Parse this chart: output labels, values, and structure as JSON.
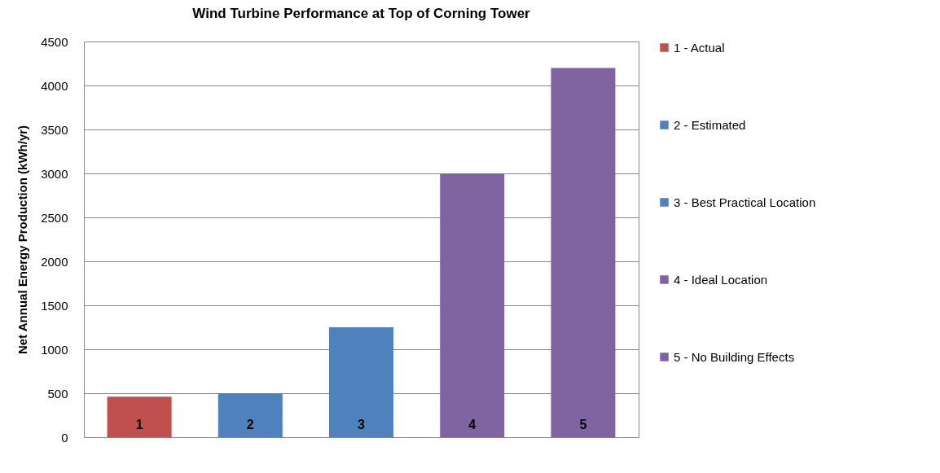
{
  "chart_data": {
    "type": "bar",
    "title": "Wind Turbine Performance at Top of Corning Tower",
    "ylabel": "Net Annual Energy Production  (kWh/yr)",
    "categories": [
      "1",
      "2",
      "3",
      "4",
      "5"
    ],
    "series": [
      {
        "name": "1 - Actual",
        "color": "#c0504d",
        "values": [
          460,
          null,
          null,
          null,
          null
        ]
      },
      {
        "name": "2 - Estimated",
        "color": "#4f81bd",
        "values": [
          null,
          500,
          null,
          null,
          null
        ]
      },
      {
        "name": "3 - Best Practical Location",
        "color": "#4f81bd",
        "values": [
          null,
          null,
          1250,
          null,
          null
        ]
      },
      {
        "name": "4 - Ideal Location",
        "color": "#8064a2",
        "values": [
          null,
          null,
          null,
          3000,
          null
        ]
      },
      {
        "name": "5 - No Building Effects",
        "color": "#8064a2",
        "values": [
          null,
          null,
          null,
          null,
          4200
        ]
      }
    ],
    "ylim": [
      0,
      4500
    ],
    "yticks": [
      0,
      500,
      1000,
      1500,
      2000,
      2500,
      3000,
      3500,
      4000,
      4500
    ],
    "grid": "y",
    "legend": "right"
  }
}
